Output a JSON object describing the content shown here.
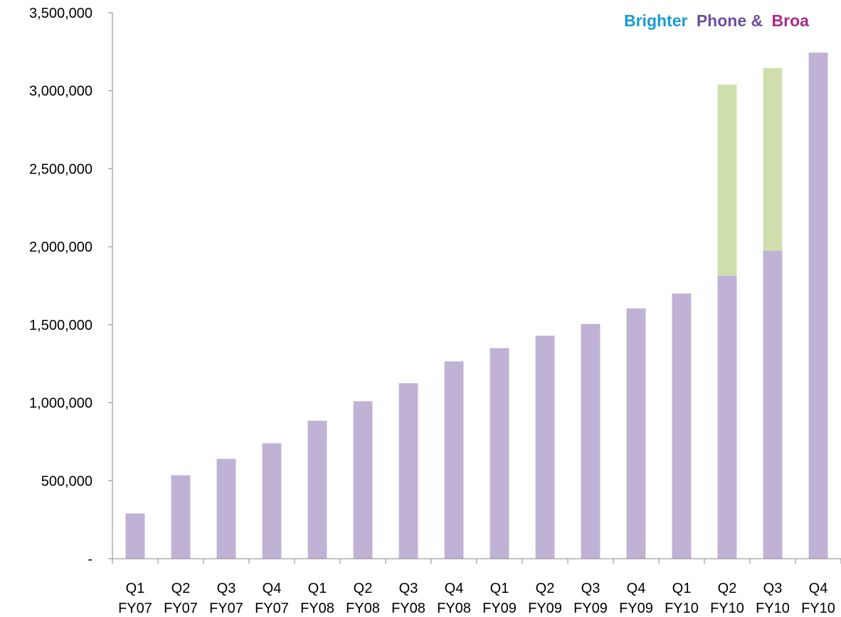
{
  "banner": {
    "part1": "Brighter",
    "part2": "Phone &",
    "part3": "Broa",
    "colors": [
      "#1a9ad6",
      "#6b4fa0",
      "#a82a8a"
    ]
  },
  "chart_data": {
    "type": "bar",
    "stacked": true,
    "title": "",
    "xlabel": "",
    "ylabel": "",
    "ylim": [
      0,
      3500000
    ],
    "yticks": [
      0,
      500000,
      1000000,
      1500000,
      2000000,
      2500000,
      3000000,
      3500000
    ],
    "ytick_labels": [
      "-",
      "500,000",
      "1,000,000",
      "1,500,000",
      "2,000,000",
      "2,500,000",
      "3,000,000",
      "3,500,000"
    ],
    "categories": [
      [
        "Q1",
        "FY07"
      ],
      [
        "Q2",
        "FY07"
      ],
      [
        "Q3",
        "FY07"
      ],
      [
        "Q4",
        "FY07"
      ],
      [
        "Q1",
        "FY08"
      ],
      [
        "Q2",
        "FY08"
      ],
      [
        "Q3",
        "FY08"
      ],
      [
        "Q4",
        "FY08"
      ],
      [
        "Q1",
        "FY09"
      ],
      [
        "Q2",
        "FY09"
      ],
      [
        "Q3",
        "FY09"
      ],
      [
        "Q4",
        "FY09"
      ],
      [
        "Q1",
        "FY10"
      ],
      [
        "Q2",
        "FY10"
      ],
      [
        "Q3",
        "FY10"
      ],
      [
        "Q4",
        "FY10"
      ]
    ],
    "series": [
      {
        "color": "#c0b2d4",
        "values": [
          290000,
          535000,
          640000,
          740000,
          885000,
          1010000,
          1125000,
          1265000,
          1350000,
          1430000,
          1505000,
          1605000,
          1700000,
          1815000,
          1975000,
          3245000
        ]
      },
      {
        "color": "#cedfad",
        "values": [
          0,
          0,
          0,
          0,
          0,
          0,
          0,
          0,
          0,
          0,
          0,
          0,
          0,
          1225000,
          1170000,
          0
        ]
      }
    ],
    "grid": false,
    "legend": "none"
  }
}
